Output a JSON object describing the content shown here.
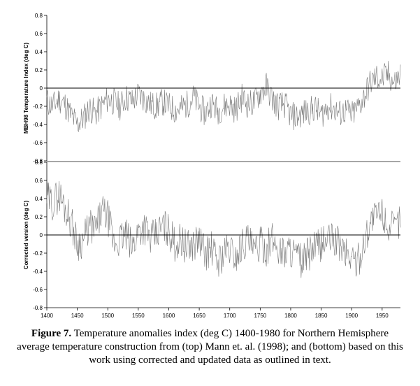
{
  "chart_data": [
    {
      "type": "line",
      "name": "top",
      "ylabel": "MBH98 Temperature Index (deg C)",
      "xlim": [
        1400,
        1980
      ],
      "ylim": [
        -0.8,
        0.8
      ],
      "yticks": [
        "0.8",
        "0.6",
        "0.4",
        "0.2",
        "0",
        "-0.2",
        "-0.4",
        "-0.6",
        "-0.8"
      ],
      "ytick_values": [
        0.8,
        0.6,
        0.4,
        0.2,
        0,
        -0.2,
        -0.4,
        -0.6,
        -0.8
      ],
      "x": [
        1400,
        1410,
        1420,
        1430,
        1440,
        1450,
        1460,
        1470,
        1480,
        1490,
        1500,
        1510,
        1520,
        1530,
        1540,
        1550,
        1560,
        1570,
        1580,
        1590,
        1600,
        1610,
        1620,
        1630,
        1640,
        1650,
        1660,
        1670,
        1680,
        1690,
        1700,
        1710,
        1720,
        1730,
        1740,
        1750,
        1760,
        1770,
        1780,
        1790,
        1800,
        1810,
        1820,
        1830,
        1840,
        1850,
        1860,
        1870,
        1880,
        1890,
        1900,
        1910,
        1920,
        1930,
        1940,
        1950,
        1960,
        1970,
        1980
      ],
      "values": [
        -0.15,
        -0.2,
        -0.12,
        -0.18,
        -0.3,
        -0.4,
        -0.33,
        -0.22,
        -0.28,
        -0.2,
        -0.12,
        -0.15,
        -0.2,
        -0.1,
        -0.15,
        -0.07,
        -0.12,
        -0.18,
        -0.2,
        -0.15,
        -0.2,
        -0.24,
        -0.22,
        -0.18,
        -0.1,
        -0.2,
        -0.28,
        -0.16,
        -0.25,
        -0.2,
        -0.18,
        -0.24,
        -0.1,
        -0.18,
        -0.16,
        -0.05,
        0.02,
        -0.12,
        -0.2,
        -0.18,
        -0.3,
        -0.32,
        -0.28,
        -0.25,
        -0.22,
        -0.3,
        -0.2,
        -0.22,
        -0.28,
        -0.25,
        -0.3,
        -0.22,
        -0.1,
        0.05,
        0.12,
        0.1,
        0.15,
        0.05,
        0.15
      ]
    },
    {
      "type": "line",
      "name": "bottom",
      "ylabel": "Corrected version (deg C)",
      "xlabel_ticks": [
        "1400",
        "1450",
        "1500",
        "1550",
        "1600",
        "1650",
        "1700",
        "1750",
        "1800",
        "1850",
        "1900",
        "1950"
      ],
      "xtick_values": [
        1400,
        1450,
        1500,
        1550,
        1600,
        1650,
        1700,
        1750,
        1800,
        1850,
        1900,
        1950
      ],
      "xlim": [
        1400,
        1980
      ],
      "ylim": [
        -0.8,
        0.8
      ],
      "yticks": [
        "0.8",
        "0.6",
        "0.4",
        "0.2",
        "0",
        "-0.2",
        "-0.4",
        "-0.6",
        "-0.8"
      ],
      "ytick_values": [
        0.8,
        0.6,
        0.4,
        0.2,
        0,
        -0.2,
        -0.4,
        -0.6,
        -0.8
      ],
      "x": [
        1400,
        1410,
        1420,
        1430,
        1440,
        1450,
        1460,
        1470,
        1480,
        1490,
        1500,
        1510,
        1520,
        1530,
        1540,
        1550,
        1560,
        1570,
        1580,
        1590,
        1600,
        1610,
        1620,
        1630,
        1640,
        1650,
        1660,
        1670,
        1680,
        1690,
        1700,
        1710,
        1720,
        1730,
        1740,
        1750,
        1760,
        1770,
        1780,
        1790,
        1800,
        1810,
        1820,
        1830,
        1840,
        1850,
        1860,
        1870,
        1880,
        1890,
        1900,
        1910,
        1920,
        1930,
        1940,
        1950,
        1960,
        1970,
        1980
      ],
      "values": [
        0.4,
        0.35,
        0.45,
        0.3,
        0.15,
        -0.1,
        -0.05,
        0.1,
        0.05,
        0.25,
        0.2,
        -0.1,
        -0.05,
        0.0,
        -0.15,
        0.05,
        0.1,
        -0.05,
        0.0,
        0.1,
        0.05,
        -0.1,
        -0.05,
        -0.15,
        -0.1,
        -0.05,
        -0.2,
        -0.15,
        -0.3,
        -0.2,
        -0.15,
        -0.25,
        -0.1,
        -0.05,
        -0.2,
        -0.1,
        -0.15,
        -0.05,
        -0.15,
        -0.2,
        -0.15,
        -0.25,
        -0.3,
        -0.2,
        -0.15,
        -0.1,
        -0.05,
        -0.05,
        -0.1,
        -0.2,
        -0.25,
        -0.3,
        -0.1,
        0.15,
        0.2,
        0.25,
        0.1,
        0.05,
        0.2
      ]
    }
  ],
  "caption": {
    "label": "Figure 7.",
    "text": " Temperature anomalies index (deg C) 1400-1980 for Northern Hemisphere average temperature construction from (top) Mann et. al. (1998); and (bottom) based on this work using corrected and updated data as outlined in text."
  }
}
